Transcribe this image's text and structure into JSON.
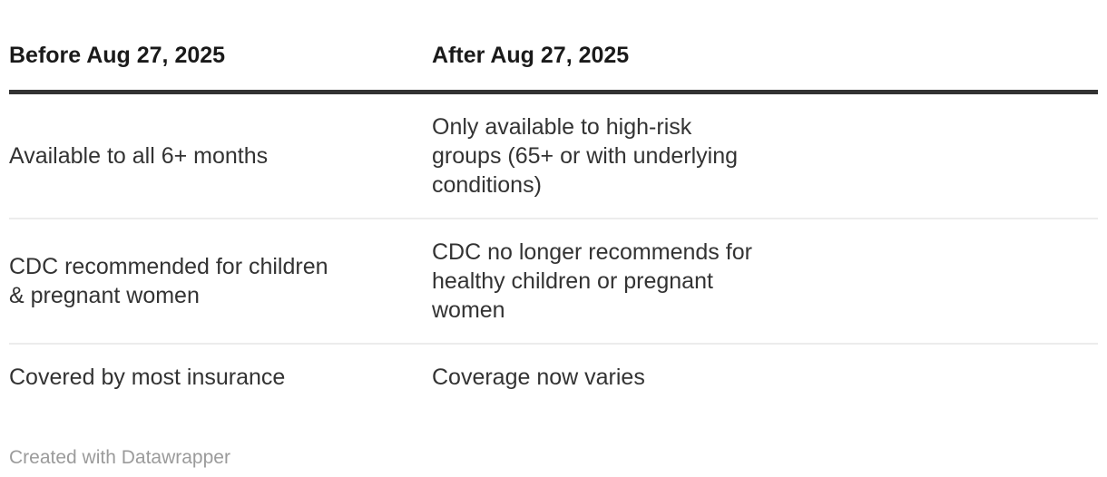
{
  "table": {
    "columns": [
      {
        "label": "Before Aug 27, 2025"
      },
      {
        "label": "After Aug 27, 2025"
      }
    ],
    "rows": [
      {
        "before": "Available to all 6+ months",
        "after": "Only available to high-risk\ngroups (65+ or with underlying\nconditions)"
      },
      {
        "before": "CDC recommended for children\n& pregnant women",
        "after": "CDC no longer recommends for\nhealthy children or pregnant\nwomen"
      },
      {
        "before": "Covered by most insurance",
        "after": "Coverage now varies"
      }
    ]
  },
  "footer": {
    "attribution": "Created with Datawrapper"
  },
  "colors": {
    "background": "#ffffff",
    "header_text": "#1a1a1a",
    "body_text": "#333333",
    "header_rule": "#333333",
    "row_divider": "#ececec",
    "attribution_text": "#9b9b9b"
  },
  "chart_data": {
    "type": "table",
    "columns": [
      "Before Aug 27, 2025",
      "After Aug 27, 2025"
    ],
    "rows": [
      [
        "Available to all 6+ months",
        "Only available to high-risk groups (65+ or with underlying conditions)"
      ],
      [
        "CDC recommended for children & pregnant women",
        "CDC no longer recommends for healthy children or pregnant women"
      ],
      [
        "Covered by most insurance",
        "Coverage now varies"
      ]
    ],
    "title": "",
    "legend_position": "none",
    "grid": "horizontal-dividers"
  }
}
